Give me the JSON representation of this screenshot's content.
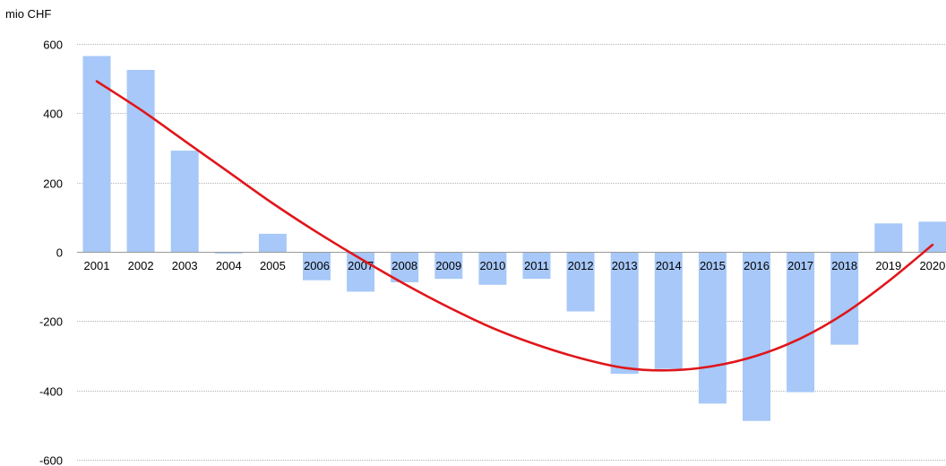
{
  "chart_data": {
    "type": "bar",
    "ylabel": "mio CHF",
    "ylim": [
      -600,
      600
    ],
    "yticks": [
      600,
      400,
      200,
      0,
      -200,
      -400,
      -600
    ],
    "categories": [
      "2001",
      "2002",
      "2003",
      "2004",
      "2005",
      "2006",
      "2007",
      "2008",
      "2009",
      "2010",
      "2011",
      "2012",
      "2013",
      "2014",
      "2015",
      "2016",
      "2017",
      "2018",
      "2019",
      "2020"
    ],
    "series": [
      {
        "type": "bar",
        "values": [
          565,
          525,
          292,
          -5,
          52,
          -82,
          -115,
          -88,
          -78,
          -95,
          -78,
          -172,
          -352,
          -338,
          -438,
          -488,
          -405,
          -268,
          82,
          87
        ],
        "color": "#a7c8f8"
      },
      {
        "type": "line",
        "values": [
          492,
          410,
          320,
          230,
          140,
          57,
          -20,
          -93,
          -160,
          -220,
          -268,
          -307,
          -335,
          -342,
          -330,
          -300,
          -250,
          -178,
          -85,
          20
        ],
        "color": "#e0161b"
      }
    ],
    "grid": true,
    "legend": "none"
  },
  "colors": {
    "bar": "#a7c8f8",
    "trend": "#e0161b",
    "grid": "#b4b4b4",
    "axis": "#9a9a9a"
  }
}
